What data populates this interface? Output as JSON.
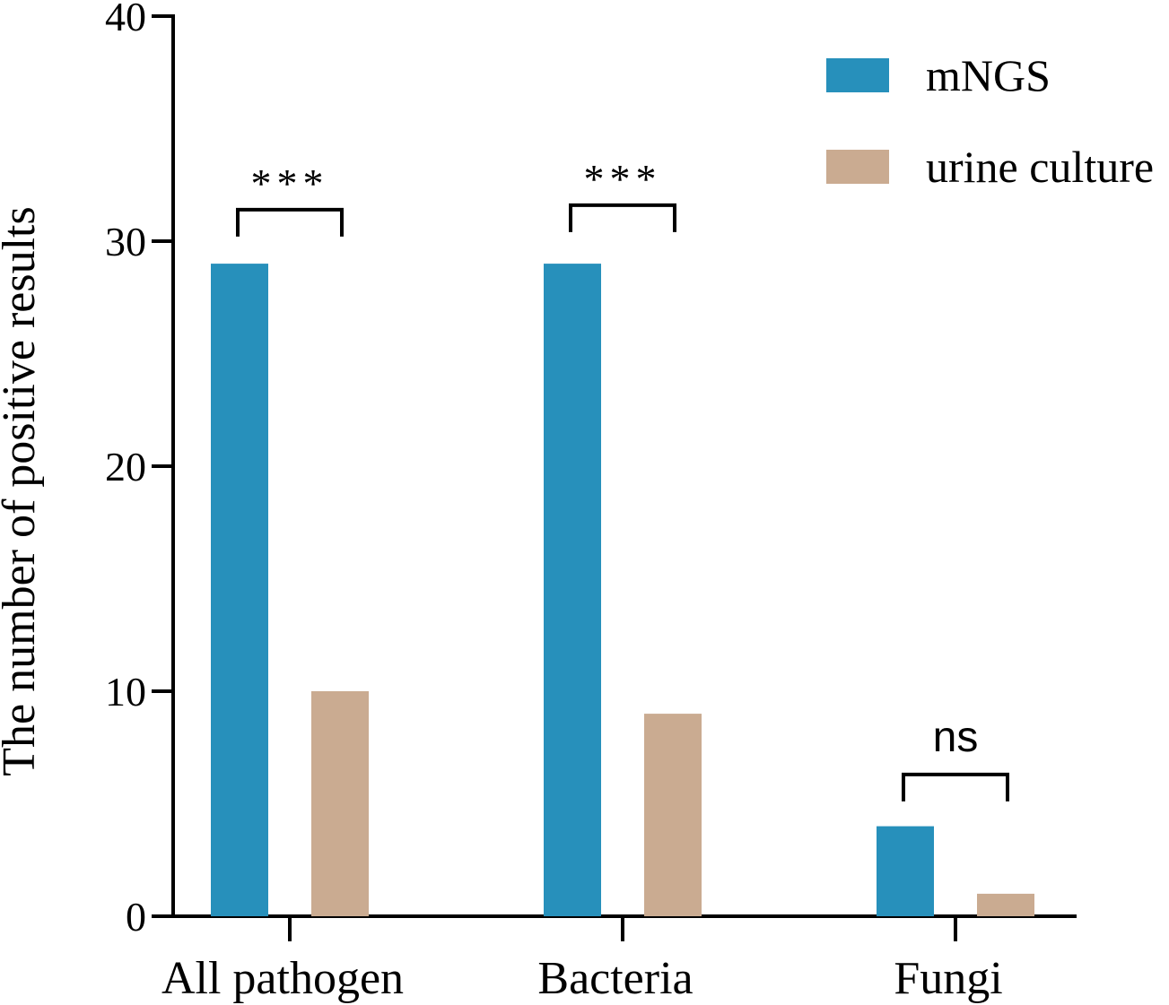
{
  "chart_data": {
    "type": "bar",
    "title": "",
    "xlabel": "",
    "ylabel": "The number of positive results",
    "ylim": [
      0,
      40
    ],
    "yticks": [
      0,
      10,
      20,
      30,
      40
    ],
    "grid": false,
    "legend_position": "top-right",
    "categories": [
      "All pathogen",
      "Bacteria",
      "Fungi"
    ],
    "series": [
      {
        "name": "mNGS",
        "color": "#2790bb",
        "values": [
          29,
          29,
          4
        ]
      },
      {
        "name": "urine culture",
        "color": "#caab91",
        "values": [
          10,
          9,
          1
        ]
      }
    ],
    "annotations": [
      {
        "category": "All pathogen",
        "label": "***",
        "level": 31.4
      },
      {
        "category": "Bacteria",
        "label": "***",
        "level": 31.6
      },
      {
        "category": "Fungi",
        "label": "ns",
        "level": 6.3
      }
    ]
  }
}
